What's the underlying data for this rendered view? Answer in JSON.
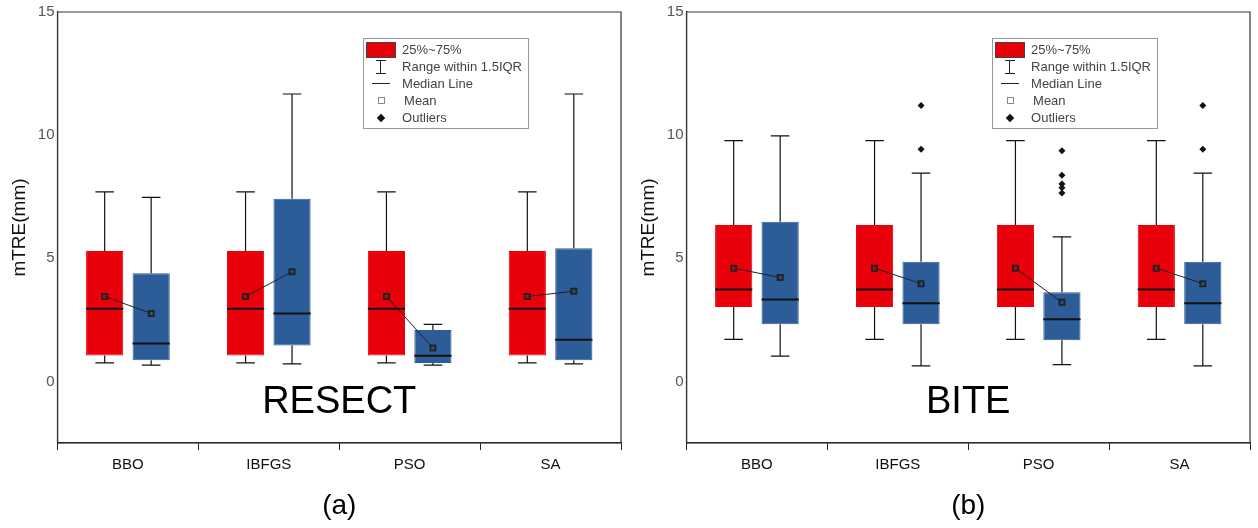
{
  "chart_data": [
    {
      "type": "box",
      "categories": [
        "BBO",
        "IBFGS",
        "PSO",
        "SA"
      ],
      "ylabel": "mTRE(mm)",
      "ylim": [
        -2.5,
        15
      ],
      "yticks": [
        0,
        5,
        10,
        15
      ],
      "grid": false,
      "annotations": [
        "RESECT",
        "(a)",
        "25%~75%",
        "Range within 1.5IQR",
        "Median Line",
        "Mean",
        "Outliers"
      ],
      "series": [
        {
          "color": "#e8000b",
          "boxes": [
            {
              "low": 0.75,
              "q1": 1.05,
              "median": 2.95,
              "q3": 5.3,
              "high": 7.7,
              "mean": 3.45
            },
            {
              "low": 0.75,
              "q1": 1.05,
              "median": 2.95,
              "q3": 5.3,
              "high": 7.7,
              "mean": 3.45
            },
            {
              "low": 0.75,
              "q1": 1.05,
              "median": 2.95,
              "q3": 5.3,
              "high": 7.7,
              "mean": 3.45
            },
            {
              "low": 0.75,
              "q1": 1.05,
              "median": 2.95,
              "q3": 5.3,
              "high": 7.7,
              "mean": 3.45
            }
          ]
        },
        {
          "color": "#2d5d99",
          "boxes": [
            {
              "low": 0.66,
              "q1": 0.86,
              "median": 1.54,
              "q3": 4.39,
              "high": 7.47,
              "mean": 2.76
            },
            {
              "low": 0.71,
              "q1": 1.46,
              "median": 2.76,
              "q3": 7.42,
              "high": 11.67,
              "mean": 4.45
            },
            {
              "low": 0.66,
              "q1": 0.75,
              "median": 1.04,
              "q3": 2.09,
              "high": 2.32,
              "mean": 1.36
            },
            {
              "low": 0.71,
              "q1": 0.86,
              "median": 1.69,
              "q3": 5.41,
              "high": 11.67,
              "mean": 3.66
            }
          ]
        }
      ]
    },
    {
      "type": "box",
      "categories": [
        "BBO",
        "IBFGS",
        "PSO",
        "SA"
      ],
      "ylabel": "mTRE(mm)",
      "ylim": [
        -2.5,
        15
      ],
      "yticks": [
        0,
        5,
        10,
        15
      ],
      "grid": false,
      "annotations": [
        "BITE",
        "(b)",
        "25%~75%",
        "Range within 1.5IQR",
        "Median Line",
        "Mean",
        "Outliers"
      ],
      "series": [
        {
          "color": "#e8000b",
          "boxes": [
            {
              "low": 1.71,
              "q1": 3.02,
              "median": 3.73,
              "q3": 6.35,
              "high": 9.78,
              "mean": 4.6
            },
            {
              "low": 1.71,
              "q1": 3.02,
              "median": 3.73,
              "q3": 6.35,
              "high": 9.78,
              "mean": 4.6
            },
            {
              "low": 1.71,
              "q1": 3.02,
              "median": 3.73,
              "q3": 6.35,
              "high": 9.78,
              "mean": 4.6
            },
            {
              "low": 1.71,
              "q1": 3.02,
              "median": 3.73,
              "q3": 6.35,
              "high": 9.78,
              "mean": 4.6
            }
          ]
        },
        {
          "color": "#2d5d99",
          "boxes": [
            {
              "low": 1.03,
              "q1": 2.32,
              "median": 3.33,
              "q3": 6.48,
              "high": 9.97,
              "mean": 4.22
            },
            {
              "low": 0.63,
              "q1": 2.32,
              "median": 3.17,
              "q3": 4.86,
              "high": 8.46,
              "mean": 3.97,
              "outliers": [
                11.2,
                9.43
              ]
            },
            {
              "low": 0.68,
              "q1": 1.67,
              "median": 2.52,
              "q3": 3.62,
              "high": 5.87,
              "mean": 3.21,
              "outliers": [
                9.37,
                8.37,
                8.02,
                7.86,
                7.65
              ]
            },
            {
              "low": 0.63,
              "q1": 2.32,
              "median": 3.17,
              "q3": 4.86,
              "high": 8.46,
              "mean": 3.97,
              "outliers": [
                11.2,
                9.43
              ]
            }
          ]
        }
      ]
    }
  ]
}
